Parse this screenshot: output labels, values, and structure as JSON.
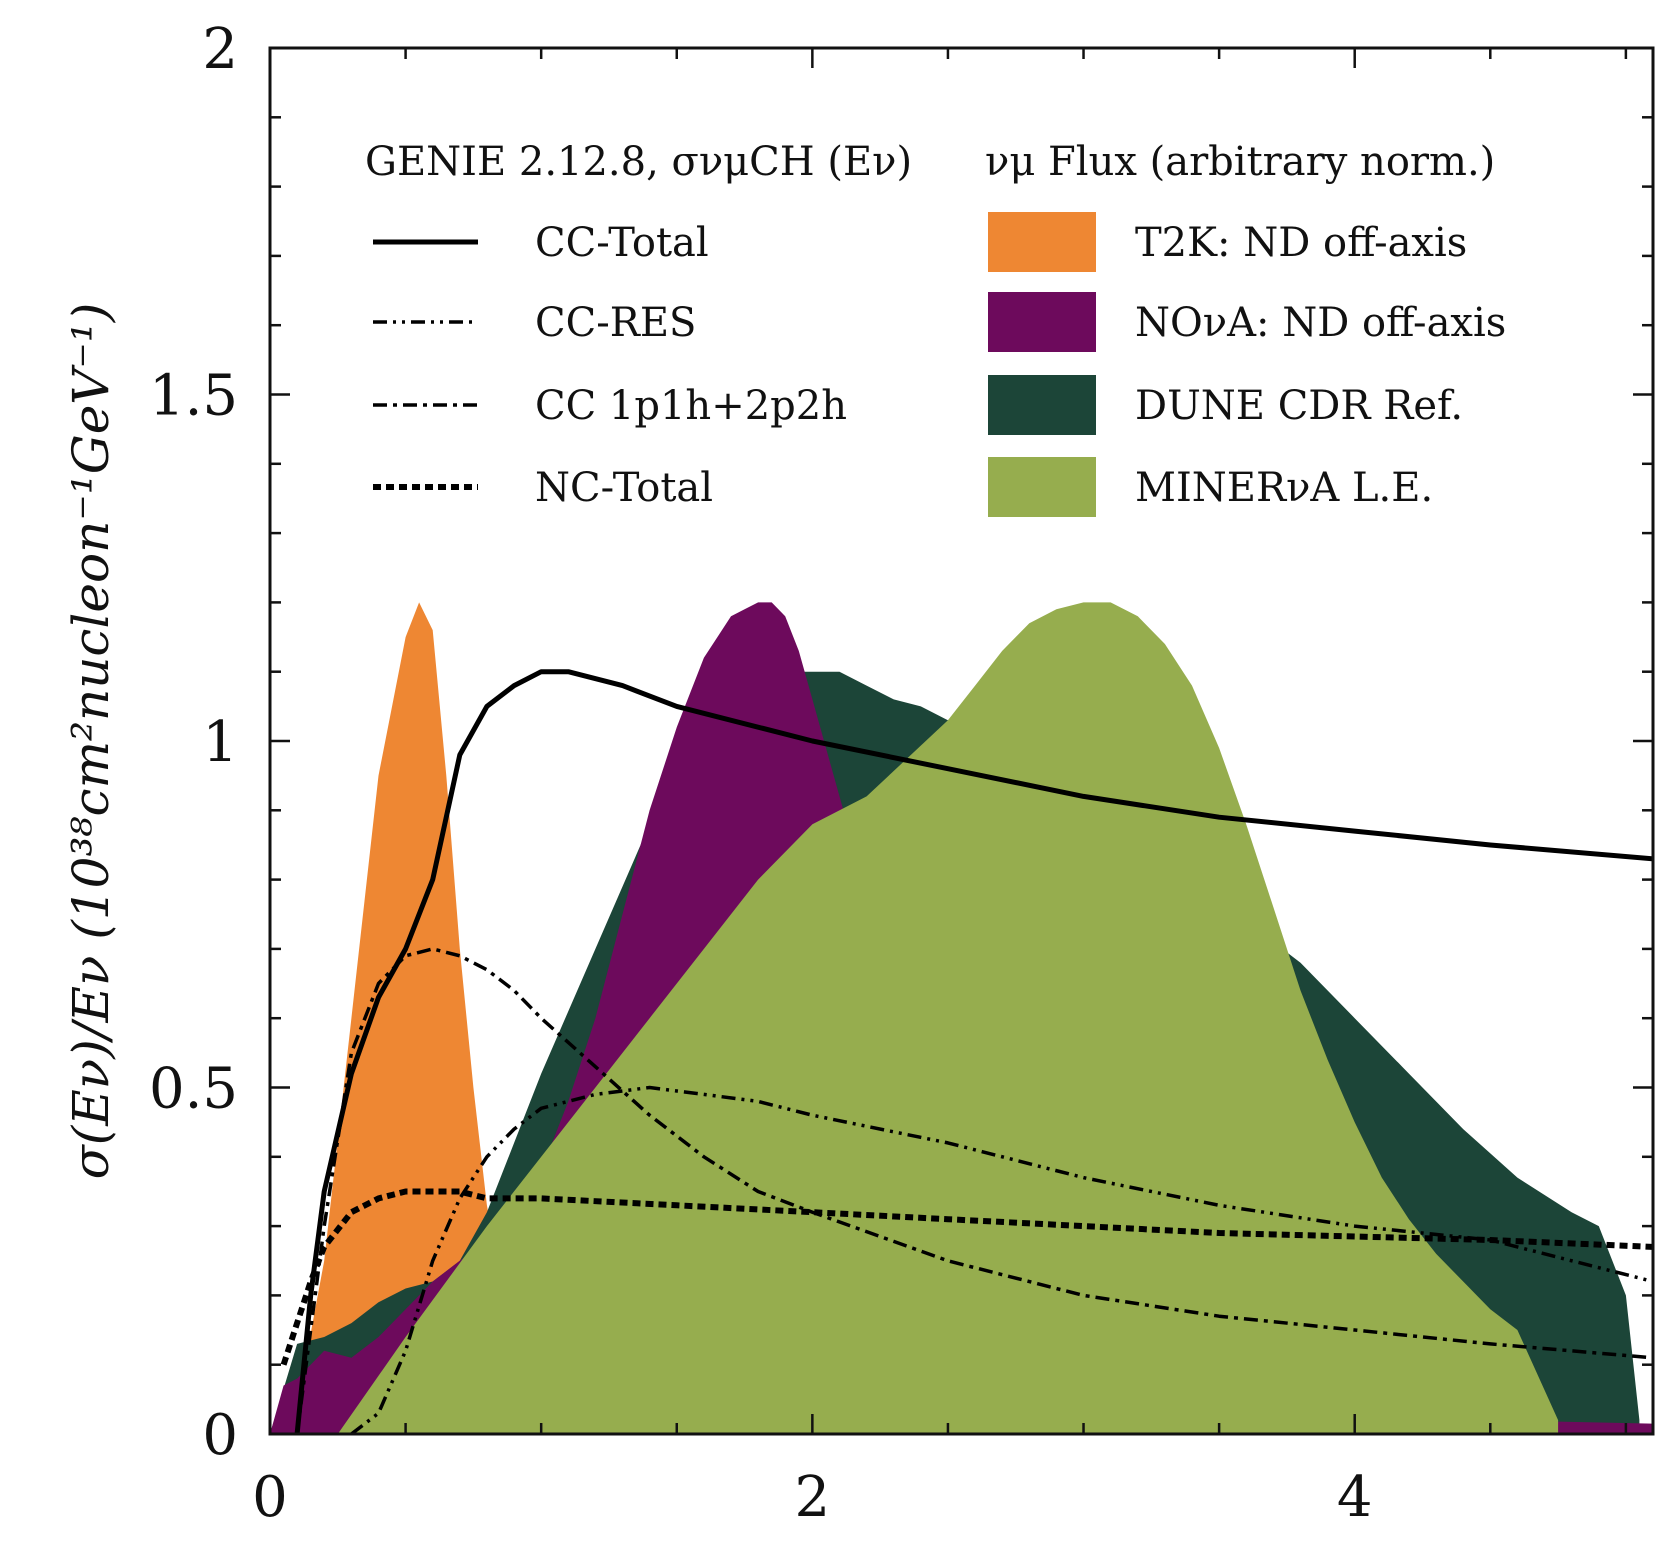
{
  "chart_data": {
    "type": "line",
    "title": "",
    "ylabel": "σ(Eν)/Eν  (10³⁸cm²nucleon⁻¹GeV⁻¹)",
    "xlabel": "",
    "xlim": [
      0,
      5.1
    ],
    "ylim": [
      0,
      2
    ],
    "x_ticks": [
      0,
      2,
      4
    ],
    "y_ticks": [
      0,
      0.5,
      1,
      1.5,
      2
    ],
    "x_tick_labels": [
      "0",
      "2",
      "4"
    ],
    "y_tick_labels": [
      "0",
      "0.5",
      "1",
      "1.5",
      "2"
    ],
    "legend": {
      "position": "top",
      "xsec_header": "GENIE 2.12.8, σνμCH (Eν)",
      "flux_header": "νμ Flux (arbitrary norm.)",
      "line_entries": [
        "CC-Total",
        "CC-RES",
        "CC 1p1h+2p2h",
        "NC-Total"
      ],
      "flux_entries": [
        "T2K: ND off-axis",
        "NOνA: ND off-axis",
        "DUNE CDR Ref.",
        "MINERνA L.E."
      ]
    },
    "flux_series": [
      {
        "name": "T2K: ND off-axis",
        "color": "#EE8733",
        "x": [
          0.0,
          0.1,
          0.2,
          0.3,
          0.4,
          0.5,
          0.55,
          0.6,
          0.65,
          0.7,
          0.75,
          0.8,
          0.85,
          0.9,
          1.0,
          1.1,
          1.3,
          1.5,
          2.0,
          3.0,
          4.0,
          5.1
        ],
        "y": [
          0.0,
          0.04,
          0.25,
          0.6,
          0.95,
          1.15,
          1.2,
          1.16,
          0.95,
          0.7,
          0.5,
          0.33,
          0.22,
          0.15,
          0.1,
          0.075,
          0.055,
          0.04,
          0.025,
          0.015,
          0.008,
          0.005
        ]
      },
      {
        "name": "DUNE CDR Ref.",
        "color": "#1C4538",
        "x": [
          0.0,
          0.1,
          0.2,
          0.3,
          0.4,
          0.5,
          0.6,
          0.7,
          0.8,
          0.9,
          1.0,
          1.2,
          1.4,
          1.6,
          1.7,
          1.8,
          1.9,
          2.0,
          2.1,
          2.2,
          2.3,
          2.4,
          2.5,
          2.6,
          2.8,
          3.0,
          3.2,
          3.4,
          3.6,
          3.8,
          4.0,
          4.2,
          4.4,
          4.6,
          4.8,
          4.9,
          5.0,
          5.05
        ],
        "y": [
          0.0,
          0.13,
          0.14,
          0.16,
          0.19,
          0.21,
          0.22,
          0.25,
          0.32,
          0.42,
          0.52,
          0.7,
          0.88,
          1.05,
          1.1,
          1.1,
          1.1,
          1.1,
          1.1,
          1.08,
          1.06,
          1.05,
          1.03,
          1.0,
          0.98,
          0.93,
          0.87,
          0.8,
          0.74,
          0.68,
          0.6,
          0.52,
          0.44,
          0.37,
          0.32,
          0.3,
          0.2,
          0.02
        ]
      },
      {
        "name": "NOνA: ND off-axis",
        "color": "#6D0A5C",
        "x": [
          0.0,
          0.05,
          0.1,
          0.2,
          0.3,
          0.4,
          0.5,
          0.6,
          0.7,
          0.8,
          0.9,
          1.0,
          1.1,
          1.2,
          1.3,
          1.4,
          1.5,
          1.6,
          1.7,
          1.75,
          1.8,
          1.85,
          1.9,
          1.95,
          2.0,
          2.1,
          2.2,
          2.3,
          2.4,
          2.5,
          2.6,
          2.8,
          3.0,
          3.2,
          3.5,
          4.0,
          4.5,
          5.1
        ],
        "y": [
          0.0,
          0.07,
          0.08,
          0.12,
          0.11,
          0.14,
          0.18,
          0.22,
          0.25,
          0.28,
          0.32,
          0.38,
          0.48,
          0.6,
          0.75,
          0.9,
          1.02,
          1.12,
          1.18,
          1.19,
          1.2,
          1.2,
          1.18,
          1.13,
          1.06,
          0.92,
          0.78,
          0.65,
          0.53,
          0.43,
          0.34,
          0.22,
          0.13,
          0.08,
          0.05,
          0.03,
          0.02,
          0.015
        ]
      },
      {
        "name": "MINERνA L.E.",
        "color": "#96AD4E",
        "x": [
          0.25,
          0.5,
          0.8,
          1.0,
          1.2,
          1.4,
          1.6,
          1.8,
          2.0,
          2.2,
          2.5,
          2.6,
          2.7,
          2.8,
          2.9,
          3.0,
          3.1,
          3.2,
          3.3,
          3.4,
          3.5,
          3.6,
          3.7,
          3.8,
          3.9,
          4.0,
          4.1,
          4.2,
          4.3,
          4.4,
          4.5,
          4.6,
          4.75
        ],
        "y": [
          0.0,
          0.14,
          0.3,
          0.4,
          0.5,
          0.6,
          0.7,
          0.8,
          0.88,
          0.92,
          1.03,
          1.08,
          1.13,
          1.17,
          1.19,
          1.2,
          1.2,
          1.18,
          1.14,
          1.08,
          0.99,
          0.88,
          0.76,
          0.64,
          0.54,
          0.45,
          0.37,
          0.31,
          0.26,
          0.22,
          0.18,
          0.15,
          0.02
        ]
      }
    ],
    "xsec_series": [
      {
        "name": "CC-Total",
        "style": "solid",
        "x": [
          0.1,
          0.15,
          0.2,
          0.3,
          0.4,
          0.5,
          0.6,
          0.7,
          0.8,
          0.9,
          1.0,
          1.1,
          1.3,
          1.5,
          2.0,
          2.5,
          3.0,
          3.5,
          4.0,
          4.5,
          5.1
        ],
        "y": [
          0.0,
          0.2,
          0.35,
          0.52,
          0.63,
          0.7,
          0.8,
          0.98,
          1.05,
          1.08,
          1.1,
          1.1,
          1.08,
          1.05,
          1.0,
          0.96,
          0.92,
          0.89,
          0.87,
          0.85,
          0.83
        ]
      },
      {
        "name": "CC-RES",
        "style": "dash-dot-dot",
        "x": [
          0.3,
          0.4,
          0.5,
          0.6,
          0.7,
          0.8,
          0.9,
          1.0,
          1.2,
          1.4,
          1.6,
          1.8,
          2.0,
          2.5,
          3.0,
          3.5,
          4.0,
          4.5,
          5.1
        ],
        "y": [
          0.0,
          0.03,
          0.12,
          0.25,
          0.34,
          0.4,
          0.44,
          0.47,
          0.49,
          0.5,
          0.49,
          0.48,
          0.46,
          0.42,
          0.37,
          0.33,
          0.3,
          0.28,
          0.22
        ]
      },
      {
        "name": "CC 1p1h+2p2h",
        "style": "dash-dot",
        "x": [
          0.1,
          0.2,
          0.3,
          0.4,
          0.5,
          0.6,
          0.7,
          0.8,
          0.9,
          1.0,
          1.2,
          1.4,
          1.6,
          1.8,
          2.0,
          2.5,
          3.0,
          3.5,
          4.0,
          4.5,
          5.1
        ],
        "y": [
          0.0,
          0.3,
          0.55,
          0.65,
          0.69,
          0.7,
          0.69,
          0.67,
          0.64,
          0.6,
          0.53,
          0.46,
          0.4,
          0.35,
          0.32,
          0.25,
          0.2,
          0.17,
          0.15,
          0.13,
          0.11
        ]
      },
      {
        "name": "NC-Total",
        "style": "dotted",
        "x": [
          0.05,
          0.1,
          0.15,
          0.2,
          0.3,
          0.4,
          0.5,
          0.6,
          0.7,
          0.8,
          1.0,
          1.5,
          2.0,
          2.5,
          3.0,
          3.5,
          4.0,
          4.5,
          5.1
        ],
        "y": [
          0.1,
          0.16,
          0.22,
          0.27,
          0.32,
          0.34,
          0.35,
          0.35,
          0.35,
          0.34,
          0.34,
          0.33,
          0.32,
          0.31,
          0.3,
          0.29,
          0.285,
          0.28,
          0.27
        ]
      }
    ]
  }
}
